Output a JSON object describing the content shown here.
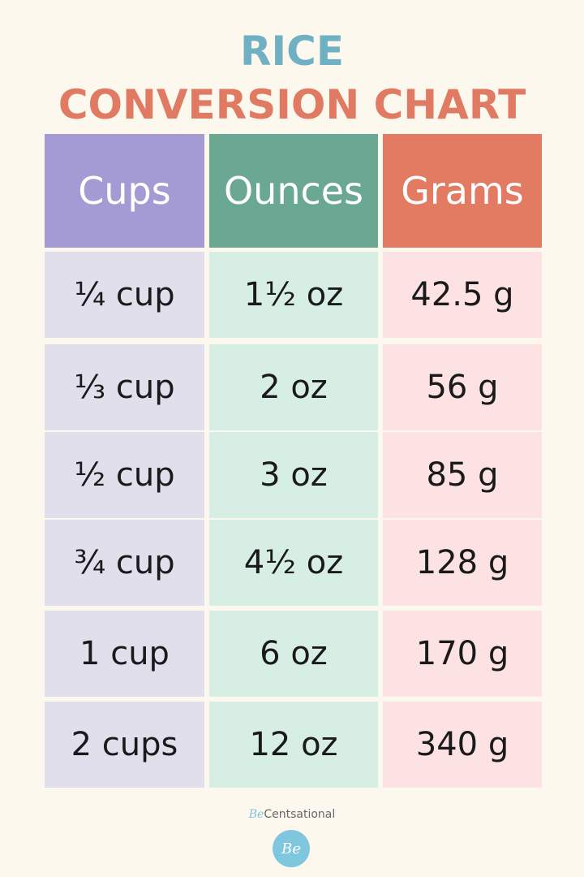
{
  "title": {
    "line1": "RICE",
    "line2": "CONVERSION CHART"
  },
  "table": {
    "header": [
      "Cups",
      "Ounces",
      "Grams"
    ],
    "rows": [
      [
        "¼ cup",
        "1½ oz",
        "42.5 g"
      ],
      [
        "⅓ cup",
        "2 oz",
        "56 g"
      ],
      [
        "½ cup",
        "3 oz",
        "85 g"
      ],
      [
        "¾ cup",
        "4½ oz",
        "128 g"
      ],
      [
        "1 cup",
        "6 oz",
        "170 g"
      ],
      [
        "2 cups",
        "12 oz",
        "340 g"
      ]
    ]
  },
  "footer": {
    "brand_prefix": "Be",
    "brand_name": "Centsational",
    "logo": "Be"
  }
}
